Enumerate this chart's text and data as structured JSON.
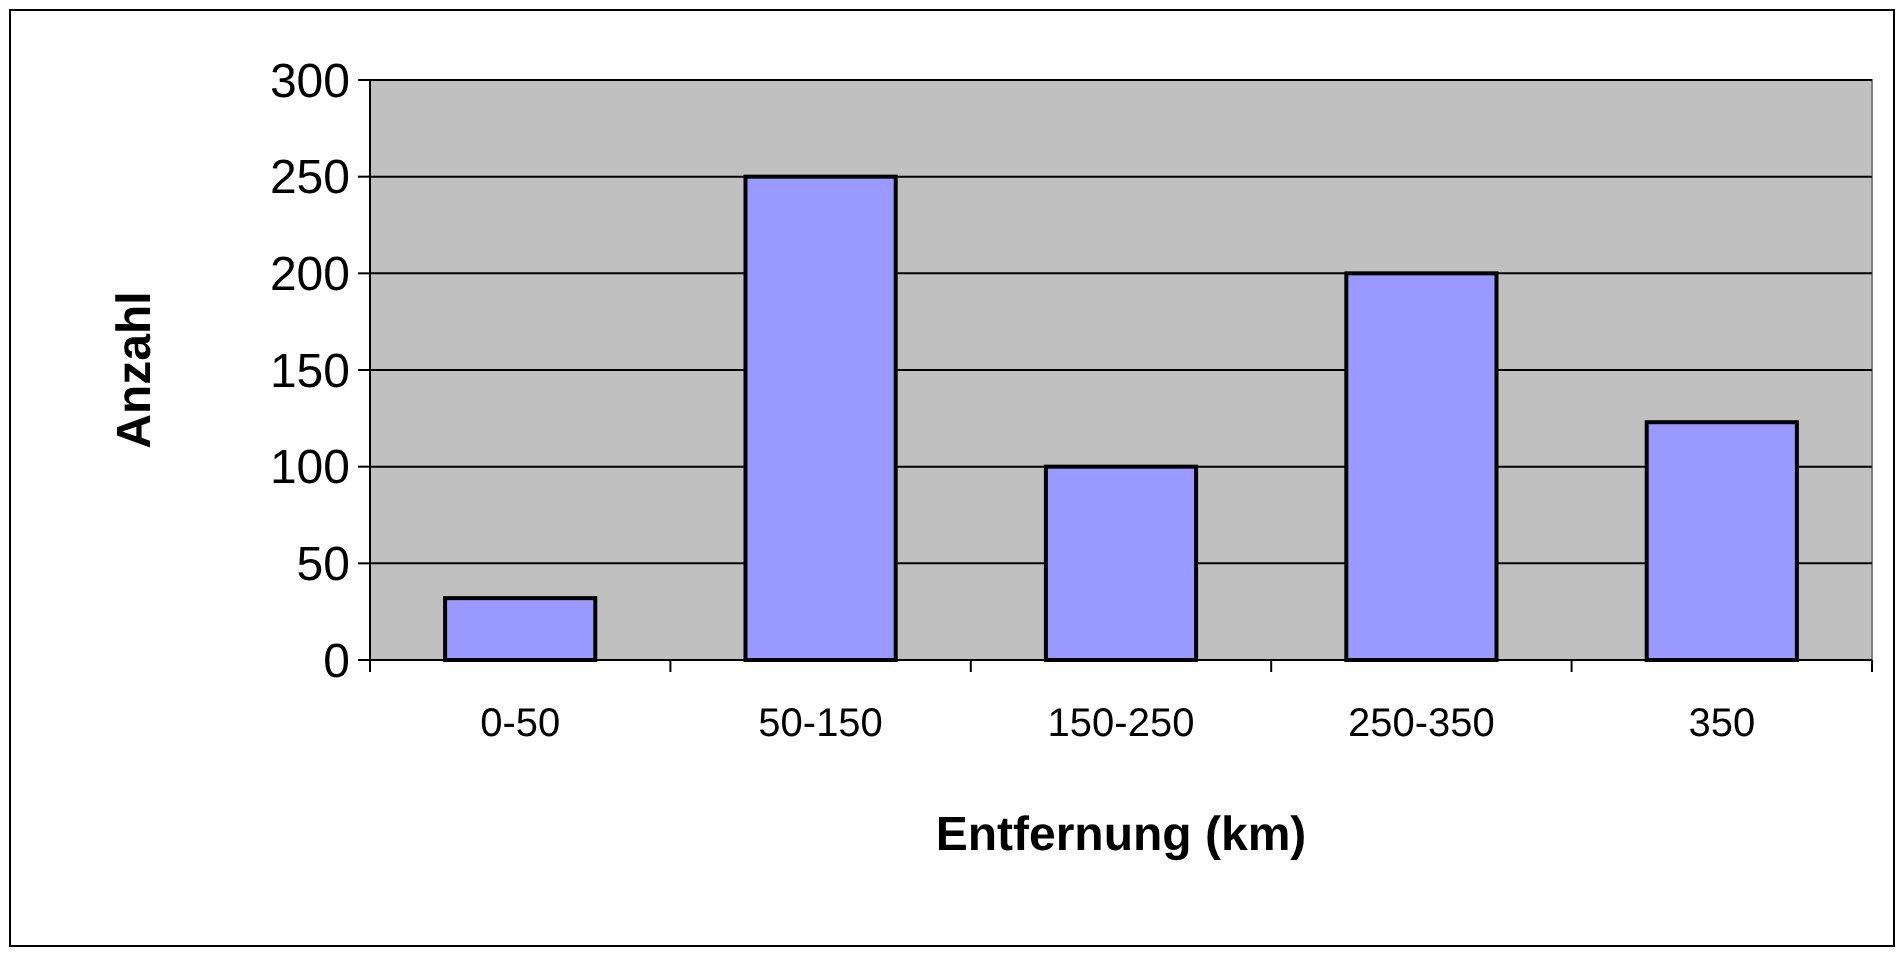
{
  "chart_data": {
    "type": "bar",
    "xlabel": "Entfernung (km)",
    "ylabel": "Anzahl",
    "categories": [
      "0-50",
      "50-150",
      "150-250",
      "250-350",
      "350"
    ],
    "values": [
      32,
      250,
      100,
      200,
      123
    ],
    "color": "#9999ff",
    "ylim": [
      0,
      300
    ],
    "yticks": [
      0,
      50,
      100,
      150,
      200,
      250,
      300
    ],
    "grid": "y"
  }
}
